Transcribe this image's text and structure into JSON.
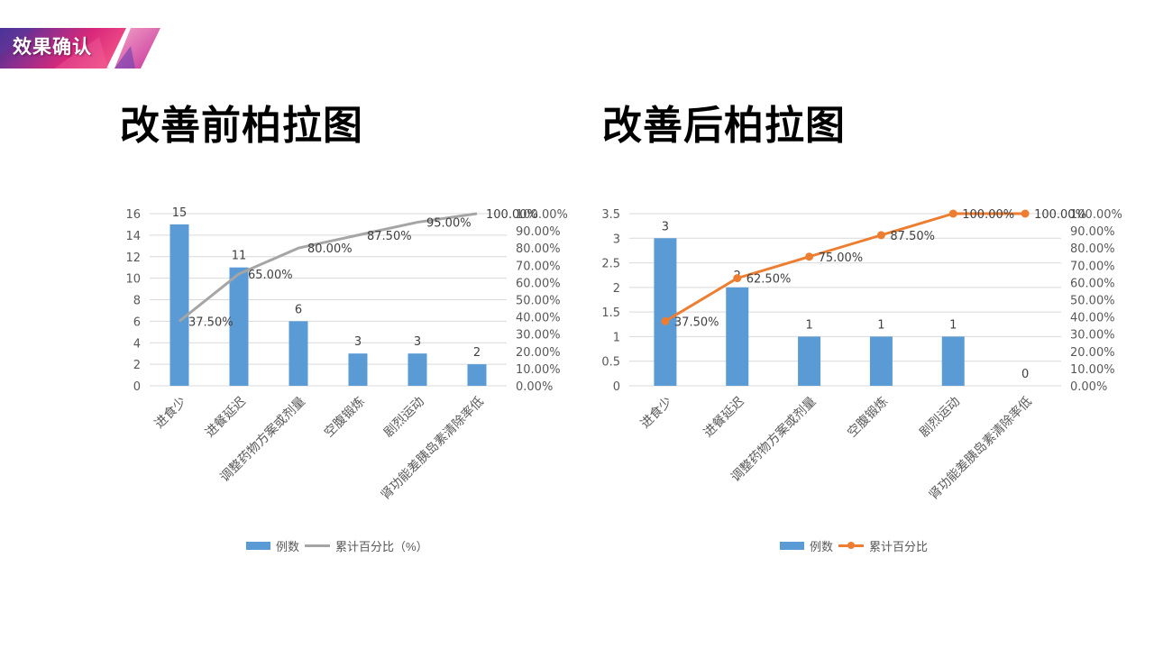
{
  "header": {
    "section_label": "效果确认",
    "banner_colors": [
      "#4a2a8c",
      "#c2287a",
      "#e8377b"
    ]
  },
  "charts": {
    "before": {
      "title": "改善前柏拉图",
      "legend": {
        "bar": "例数",
        "line": "累计百分比（%）"
      },
      "line_color": "#a5a5a5"
    },
    "after": {
      "title": "改善后柏拉图",
      "legend": {
        "bar": "例数",
        "line": "累计百分比"
      },
      "line_color": "#ed7d31"
    },
    "bar_color": "#5b9bd5"
  },
  "chart_data": [
    {
      "type": "bar",
      "title": "改善前柏拉图",
      "categories": [
        "进食少",
        "进餐延迟",
        "调整药物方案或剂量",
        "空腹锻炼",
        "剧烈运动",
        "肾功能差胰岛素清除率低"
      ],
      "series": [
        {
          "name": "例数",
          "type": "bar",
          "axis": "left",
          "values": [
            15,
            11,
            6,
            3,
            3,
            2
          ]
        },
        {
          "name": "累计百分比（%）",
          "type": "line",
          "axis": "right",
          "values": [
            37.5,
            65.0,
            80.0,
            87.5,
            95.0,
            100.0
          ]
        }
      ],
      "data_labels": {
        "bar": [
          "15",
          "11",
          "6",
          "3",
          "3",
          "2"
        ],
        "line": [
          "37.50%",
          "65.00%",
          "80.00%",
          "87.50%",
          "95.00%",
          "100.00%"
        ]
      },
      "y_left": {
        "ticks": [
          "0",
          "2",
          "4",
          "6",
          "8",
          "10",
          "12",
          "14",
          "16"
        ],
        "ylim": [
          0,
          16
        ]
      },
      "y_right": {
        "ticks": [
          "0.00%",
          "10.00%",
          "20.00%",
          "30.00%",
          "40.00%",
          "50.00%",
          "60.00%",
          "70.00%",
          "80.00%",
          "90.00%",
          "100.00%"
        ],
        "ylim": [
          0,
          100
        ]
      },
      "xlabel": "",
      "ylabel": "",
      "grid": true,
      "legend_position": "bottom"
    },
    {
      "type": "bar",
      "title": "改善后柏拉图",
      "categories": [
        "进食少",
        "进餐延迟",
        "调整药物方案或剂量",
        "空腹锻炼",
        "剧烈运动",
        "肾功能差胰岛素清除率低"
      ],
      "series": [
        {
          "name": "例数",
          "type": "bar",
          "axis": "left",
          "values": [
            3,
            2,
            1,
            1,
            1,
            0
          ]
        },
        {
          "name": "累计百分比",
          "type": "line",
          "axis": "right",
          "markers": true,
          "values": [
            37.5,
            62.5,
            75.0,
            87.5,
            100.0,
            100.0
          ]
        }
      ],
      "data_labels": {
        "bar": [
          "3",
          "2",
          "1",
          "1",
          "1",
          "0"
        ],
        "line": [
          "37.50%",
          "62.50%",
          "75.00%",
          "87.50%",
          "100.00%",
          "100.00%"
        ]
      },
      "y_left": {
        "ticks": [
          "0",
          "0.5",
          "1",
          "1.5",
          "2",
          "2.5",
          "3",
          "3.5"
        ],
        "ylim": [
          0,
          3.5
        ]
      },
      "y_right": {
        "ticks": [
          "0.00%",
          "10.00%",
          "20.00%",
          "30.00%",
          "40.00%",
          "50.00%",
          "60.00%",
          "70.00%",
          "80.00%",
          "90.00%",
          "100.00%"
        ],
        "ylim": [
          0,
          100
        ]
      },
      "xlabel": "",
      "ylabel": "",
      "grid": true,
      "legend_position": "bottom"
    }
  ]
}
